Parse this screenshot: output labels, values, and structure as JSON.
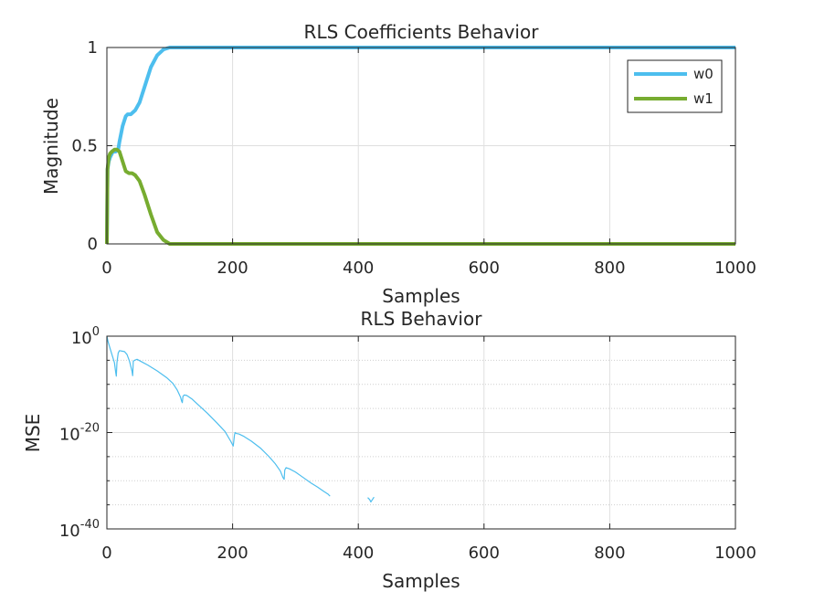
{
  "chart_data": [
    {
      "type": "line",
      "title": "RLS Coefficients Behavior",
      "xlabel": "Samples",
      "ylabel": "Magnitude",
      "xlim": [
        0,
        1000
      ],
      "ylim": [
        0,
        1
      ],
      "x_ticks": [
        "0",
        "200",
        "400",
        "600",
        "800",
        "1000"
      ],
      "y_ticks": [
        "0",
        "0.5",
        "1"
      ],
      "x_tick_values": [
        0,
        200,
        400,
        600,
        800,
        1000
      ],
      "y_tick_values": [
        0,
        0.5,
        1
      ],
      "grid": true,
      "legend_position": "top-right",
      "series": [
        {
          "name": "w0",
          "color": "#4DBEEE",
          "x": [
            0,
            1,
            3,
            5,
            8,
            10,
            14,
            18,
            20,
            25,
            30,
            33,
            38,
            45,
            52,
            60,
            70,
            80,
            90,
            100,
            110,
            150,
            300,
            500,
            700,
            1000
          ],
          "y": [
            0,
            0.38,
            0.42,
            0.44,
            0.46,
            0.47,
            0.47,
            0.48,
            0.52,
            0.6,
            0.65,
            0.66,
            0.66,
            0.68,
            0.72,
            0.8,
            0.9,
            0.96,
            0.99,
            1.0,
            1.0,
            1.0,
            1.0,
            1.0,
            1.0,
            1.0
          ]
        },
        {
          "name": "w1",
          "color": "#77AC30",
          "x": [
            0,
            1,
            3,
            5,
            8,
            12,
            16,
            20,
            25,
            30,
            35,
            40,
            45,
            52,
            60,
            70,
            80,
            90,
            100,
            110,
            150,
            300,
            500,
            700,
            1000
          ],
          "y": [
            0,
            0.38,
            0.44,
            0.46,
            0.47,
            0.48,
            0.48,
            0.47,
            0.42,
            0.37,
            0.36,
            0.36,
            0.35,
            0.32,
            0.25,
            0.15,
            0.06,
            0.02,
            0.0,
            0.0,
            0.0,
            0.0,
            0.0,
            0.0,
            0.0
          ]
        }
      ]
    },
    {
      "type": "line",
      "title": "RLS Behavior",
      "xlabel": "Samples",
      "ylabel": "MSE",
      "xlim": [
        0,
        1000
      ],
      "ylim": [
        1e-40,
        1
      ],
      "yscale": "log",
      "x_ticks": [
        "0",
        "200",
        "400",
        "600",
        "800",
        "1000"
      ],
      "x_tick_values": [
        0,
        200,
        400,
        600,
        800,
        1000
      ],
      "y_ticks": [
        {
          "base": "10",
          "exp": "0"
        },
        {
          "base": "10",
          "exp": "-20"
        },
        {
          "base": "10",
          "exp": "-40"
        }
      ],
      "y_tick_exponents": [
        0,
        -20,
        -40
      ],
      "grid": true,
      "series": [
        {
          "color": "#4DBEEE",
          "segments": [
            {
              "x": [
                0,
                2,
                5,
                8,
                12,
                14,
                15,
                16,
                18,
                20,
                24,
                28,
                32,
                36,
                40,
                41,
                42,
                44,
                48,
                55,
                65,
                80,
                95,
                105,
                112,
                117,
                119,
                120,
                121,
                123,
                127,
                135,
                145,
                160,
                175,
                188,
                197,
                201,
                203,
                204,
                206,
                210,
                218,
                230,
                245,
                258,
                268,
                276,
                280,
                282,
                283,
                285,
                290,
                300,
                312,
                325,
                335,
                345,
                352,
                355
              ],
              "log10_y": [
                0,
                -1.2,
                -2.5,
                -3.8,
                -5.5,
                -7.5,
                -8.3,
                -5.5,
                -3.5,
                -3.0,
                -3.1,
                -3.2,
                -3.8,
                -5.2,
                -7.3,
                -8.2,
                -5.2,
                -5.0,
                -4.8,
                -5.3,
                -6.0,
                -7.2,
                -8.6,
                -9.8,
                -11.2,
                -12.6,
                -13.5,
                -13.8,
                -12.5,
                -12.2,
                -12.3,
                -13.0,
                -14.2,
                -16.0,
                -18.0,
                -19.8,
                -21.8,
                -22.8,
                -20.5,
                -20.0,
                -20.2,
                -20.3,
                -20.8,
                -21.8,
                -23.3,
                -25.0,
                -26.5,
                -28.0,
                -29.3,
                -29.7,
                -27.8,
                -27.3,
                -27.5,
                -28.2,
                -29.3,
                -30.5,
                -31.3,
                -32.2,
                -32.8,
                -33.2
              ]
            },
            {
              "x": [
                415,
                418,
                420,
                422,
                425
              ],
              "log10_y": [
                -33.5,
                -33.9,
                -34.4,
                -34.0,
                -33.4
              ]
            }
          ]
        }
      ]
    }
  ]
}
